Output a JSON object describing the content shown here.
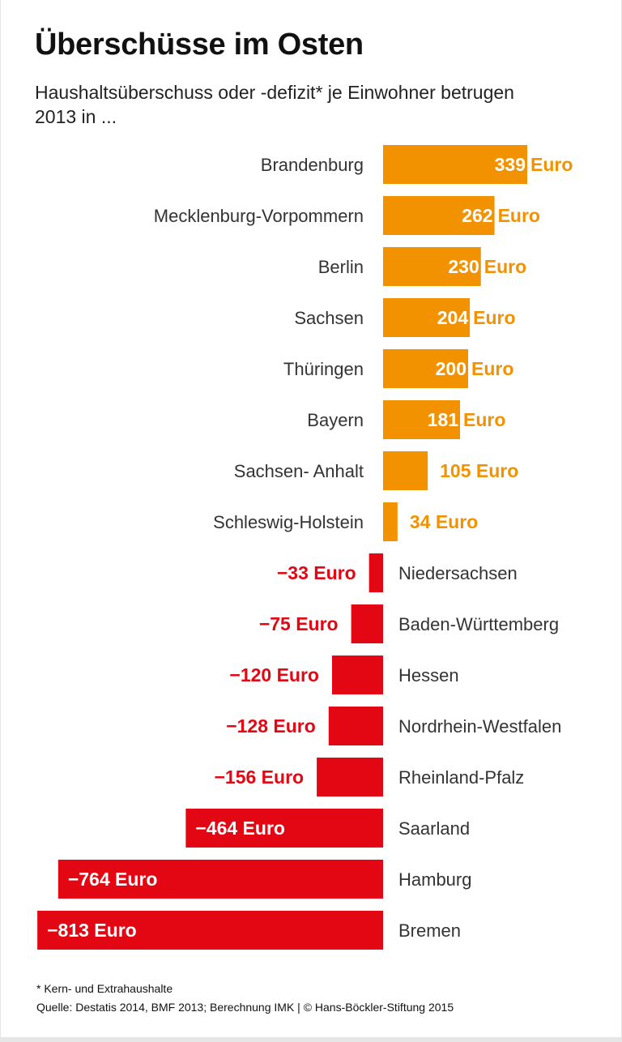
{
  "chart_data": {
    "type": "bar",
    "orientation": "horizontal",
    "title": "Überschüsse im Osten",
    "subtitle": "Haushaltsüberschuss oder -defizit* je Einwohner betrugen 2013 in ...",
    "unit": "Euro",
    "categories": [
      "Brandenburg",
      "Mecklenburg-Vorpommern",
      "Berlin",
      "Sachsen",
      "Thüringen",
      "Bayern",
      "Sachsen- Anhalt",
      "Schleswig-Holstein",
      "Niedersachsen",
      "Baden-Württemberg",
      "Hessen",
      "Nordrhein-Westfalen",
      "Rheinland-Pfalz",
      "Saarland",
      "Hamburg",
      "Bremen"
    ],
    "values": [
      339,
      262,
      230,
      204,
      200,
      181,
      105,
      34,
      -33,
      -75,
      -120,
      -128,
      -156,
      -464,
      -764,
      -813
    ],
    "xlim": [
      -813,
      339
    ],
    "grid": false,
    "colors": {
      "positive": "#f39200",
      "negative": "#e30613"
    }
  },
  "footer": {
    "footnote": "* Kern- und Extrahaushalte",
    "source": "Quelle: Destatis 2014, BMF 2013; Berechnung IMK | © Hans-Böckler-Stiftung 2015"
  }
}
